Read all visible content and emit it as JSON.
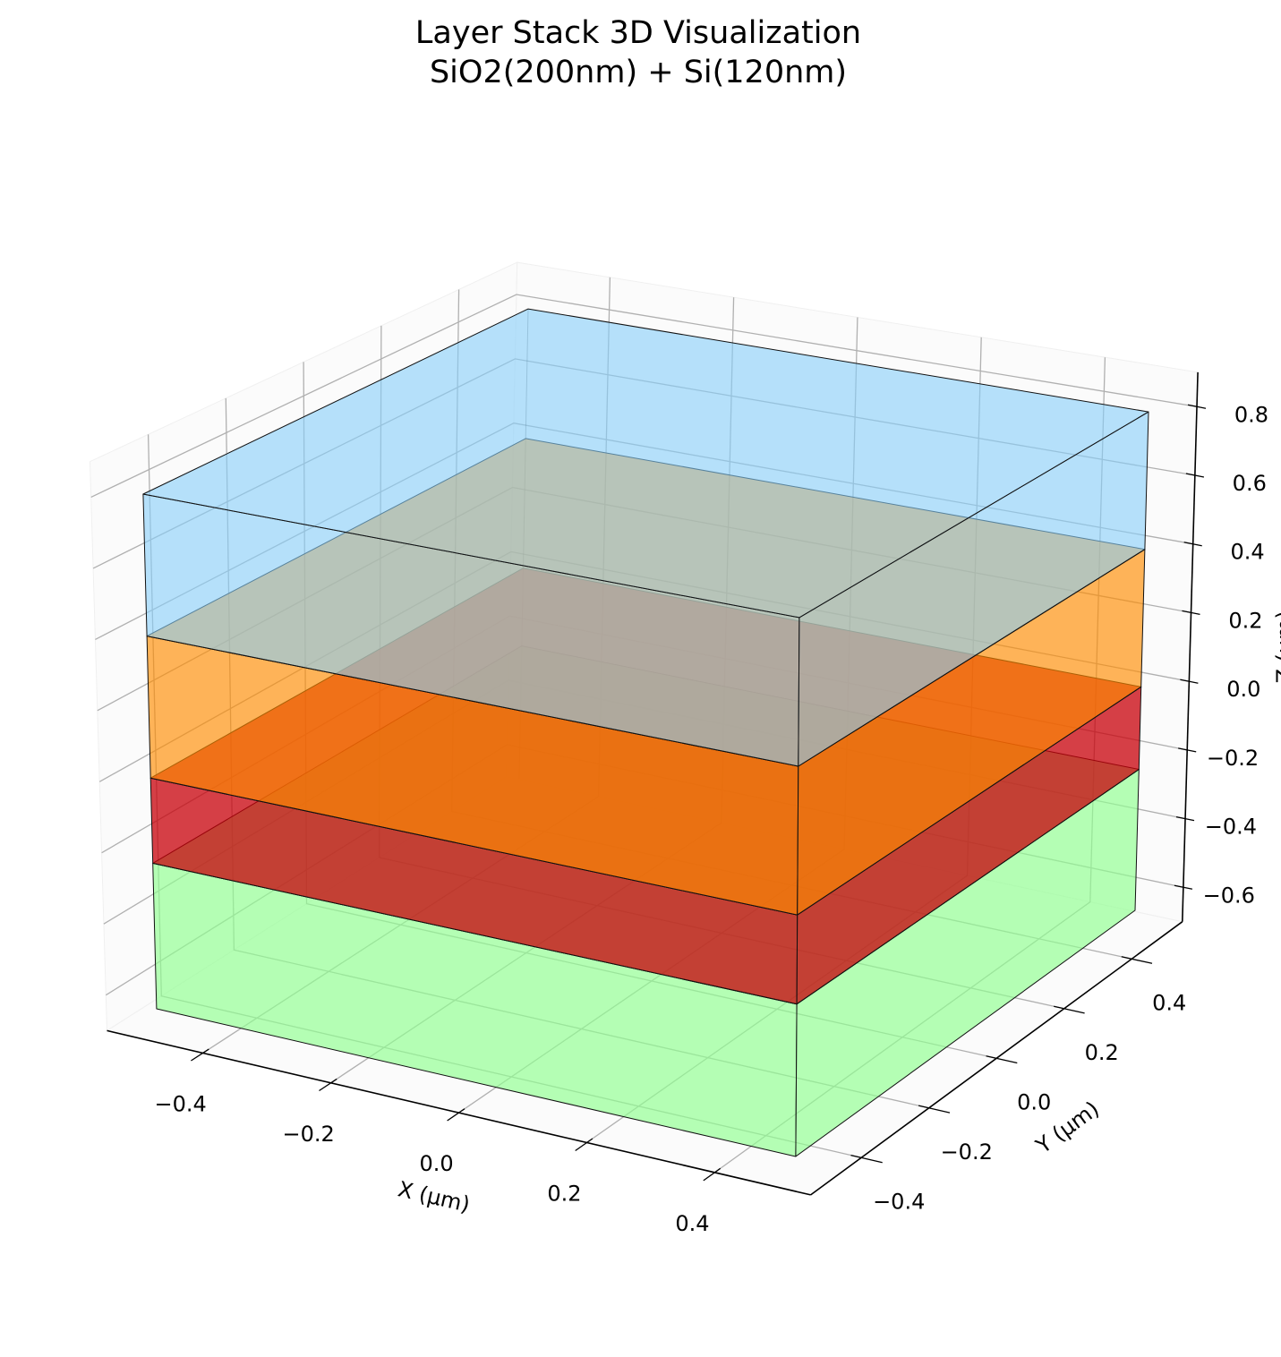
{
  "chart_data": {
    "type": "layers",
    "title": "Layer Stack 3D Visualization",
    "subtitle": "SiO2(200nm) + Si(120nm)",
    "x_label": "X (μm)",
    "y_label": "Y (μm)",
    "z_label": "Z (μm)",
    "xlim": [
      -0.55,
      0.55
    ],
    "ylim": [
      -0.55,
      0.55
    ],
    "zlim": [
      -0.7,
      0.9
    ],
    "xticks": [
      {
        "value": -0.4,
        "label": "−0.4"
      },
      {
        "value": -0.2,
        "label": "−0.2"
      },
      {
        "value": 0,
        "label": "0.0"
      },
      0.2,
      0.4
    ],
    "yticks": [
      {
        "value": -0.4,
        "label": "−0.4"
      },
      {
        "value": -0.2,
        "label": "−0.2"
      },
      {
        "value": 0,
        "label": "0.0"
      },
      0.2,
      0.4
    ],
    "zticks": [
      {
        "value": -0.6,
        "label": "−0.6"
      },
      {
        "value": -0.4,
        "label": "−0.4"
      },
      {
        "value": -0.2,
        "label": "−0.2"
      },
      {
        "value": 0,
        "label": "0.0"
      },
      0.2,
      0.4,
      0.6,
      0.8
    ],
    "x_extent": [
      -0.5,
      0.5
    ],
    "y_extent": [
      -0.5,
      0.5
    ],
    "series": [
      {
        "color": "rgba(144,255,144,0.67)",
        "values": [
          -0.65,
          -0.24
        ]
      },
      {
        "color": "rgba(200,0,10,0.75)",
        "values": [
          -0.24,
          0
        ]
      },
      {
        "color": "rgba(255,140,0,0.65)",
        "values": [
          0,
          0.4
        ]
      },
      {
        "color": "rgba(135,206,250,0.6)",
        "values": [
          0.4,
          0.8
        ]
      }
    ],
    "grid": true
  }
}
